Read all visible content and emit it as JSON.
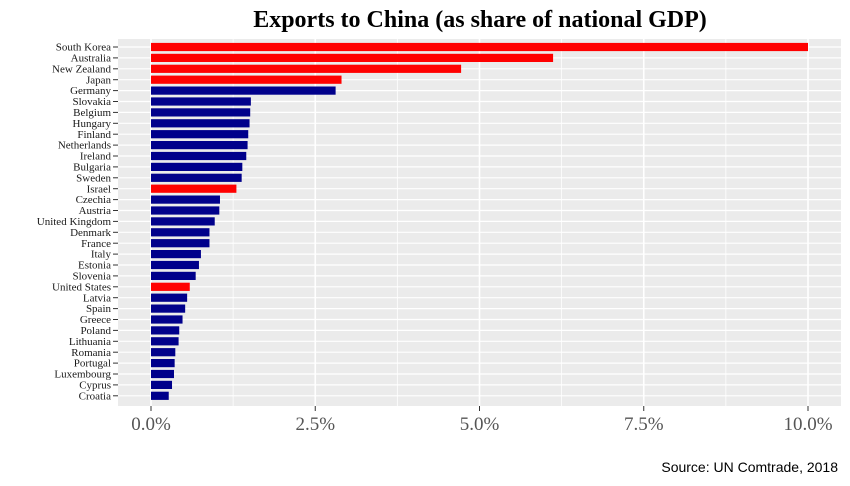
{
  "chart_data": {
    "type": "bar",
    "orientation": "horizontal",
    "title": "Exports to China (as share of national GDP)",
    "xlabel": "",
    "ylabel": "",
    "xlim": [
      0,
      10.0
    ],
    "x_ticks": [
      0,
      2.5,
      5.0,
      7.5,
      10.0
    ],
    "x_tick_labels": [
      "0.0%",
      "2.5%",
      "5.0%",
      "7.5%",
      "10.0%"
    ],
    "grid": true,
    "legend": "none",
    "colors": {
      "highlight": "#ff0000",
      "default": "#00008b",
      "panel": "#ebebeb",
      "grid": "#ffffff"
    },
    "categories": [
      "South Korea",
      "Australia",
      "New Zealand",
      "Japan",
      "Germany",
      "Slovakia",
      "Belgium",
      "Hungary",
      "Finland",
      "Netherlands",
      "Ireland",
      "Bulgaria",
      "Sweden",
      "Israel",
      "Czechia",
      "Austria",
      "United Kingdom",
      "Denmark",
      "France",
      "Italy",
      "Estonia",
      "Slovenia",
      "United States",
      "Latvia",
      "Spain",
      "Greece",
      "Poland",
      "Lithuania",
      "Romania",
      "Portugal",
      "Luxembourg",
      "Cyprus",
      "Croatia"
    ],
    "values": [
      10.0,
      6.12,
      4.72,
      2.9,
      2.81,
      1.52,
      1.51,
      1.5,
      1.48,
      1.47,
      1.45,
      1.39,
      1.38,
      1.3,
      1.05,
      1.04,
      0.97,
      0.89,
      0.89,
      0.76,
      0.73,
      0.68,
      0.59,
      0.55,
      0.52,
      0.48,
      0.43,
      0.42,
      0.37,
      0.36,
      0.35,
      0.32,
      0.27
    ],
    "highlighted": [
      "South Korea",
      "Australia",
      "New Zealand",
      "Japan",
      "Israel",
      "United States"
    ]
  },
  "source": "Source: UN Comtrade, 2018"
}
